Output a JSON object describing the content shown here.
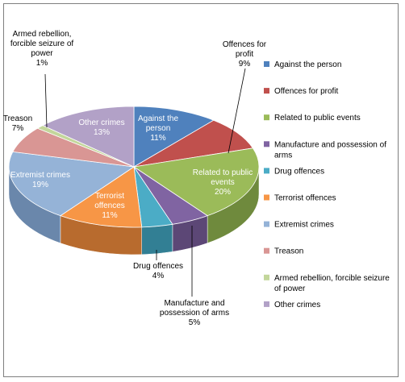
{
  "chart_data": {
    "type": "pie",
    "style": "3d",
    "legend_position": "right",
    "series": [
      {
        "name": "Against the person",
        "label_lines": [
          "Against the",
          "person",
          "11%"
        ],
        "value": 11,
        "color": "#4f81bd",
        "side": "#385d8a"
      },
      {
        "name": "Offences for profit",
        "label_lines": [
          "Offences for",
          "profit",
          "9%"
        ],
        "value": 9,
        "color": "#c0504d",
        "side": "#8c3836"
      },
      {
        "name": "Related to public events",
        "label_lines": [
          "Related to public",
          "events",
          "20%"
        ],
        "value": 20,
        "color": "#9bbb59",
        "side": "#6f8a3d"
      },
      {
        "name": "Manufacture and possession of arms",
        "label_lines": [
          "Manufacture and",
          "possession of arms",
          "5%"
        ],
        "value": 5,
        "color": "#8064a2",
        "side": "#5c4776"
      },
      {
        "name": "Drug offences",
        "label_lines": [
          "Drug offences",
          "4%"
        ],
        "value": 4,
        "color": "#4bacc6",
        "side": "#327f94"
      },
      {
        "name": "Terrorist offences",
        "label_lines": [
          "Terrorist",
          "offences",
          "11%"
        ],
        "value": 11,
        "color": "#f79646",
        "side": "#b86b2e"
      },
      {
        "name": "Extremist crimes",
        "label_lines": [
          "Extremist crimes",
          "19%"
        ],
        "value": 19,
        "color": "#95b3d7",
        "side": "#6a87ab"
      },
      {
        "name": "Treason",
        "label_lines": [
          "Treason",
          "7%"
        ],
        "value": 7,
        "color": "#d99694",
        "side": "#a86a68"
      },
      {
        "name": "Armed rebellion,  forcible seizure of power",
        "label_lines": [
          "Armed rebellion,",
          "forcible seizure of",
          "power",
          "1%"
        ],
        "value": 1,
        "color": "#c3d69b",
        "side": "#95a96f"
      },
      {
        "name": "Other crimes",
        "label_lines": [
          "Other crimes",
          "13%"
        ],
        "value": 13,
        "color": "#b2a1c7",
        "side": "#84749a"
      }
    ],
    "legend_lines": [
      [
        "Against the person"
      ],
      [
        "Offences for profit"
      ],
      [
        "Related to public events"
      ],
      [
        "Manufacture and possession of",
        "arms"
      ],
      [
        "Drug offences"
      ],
      [
        "Terrorist offences"
      ],
      [
        "Extremist crimes"
      ],
      [
        "Treason"
      ],
      [
        "Armed rebellion,  forcible seizure",
        "of power"
      ],
      [
        "Other crimes"
      ]
    ]
  }
}
